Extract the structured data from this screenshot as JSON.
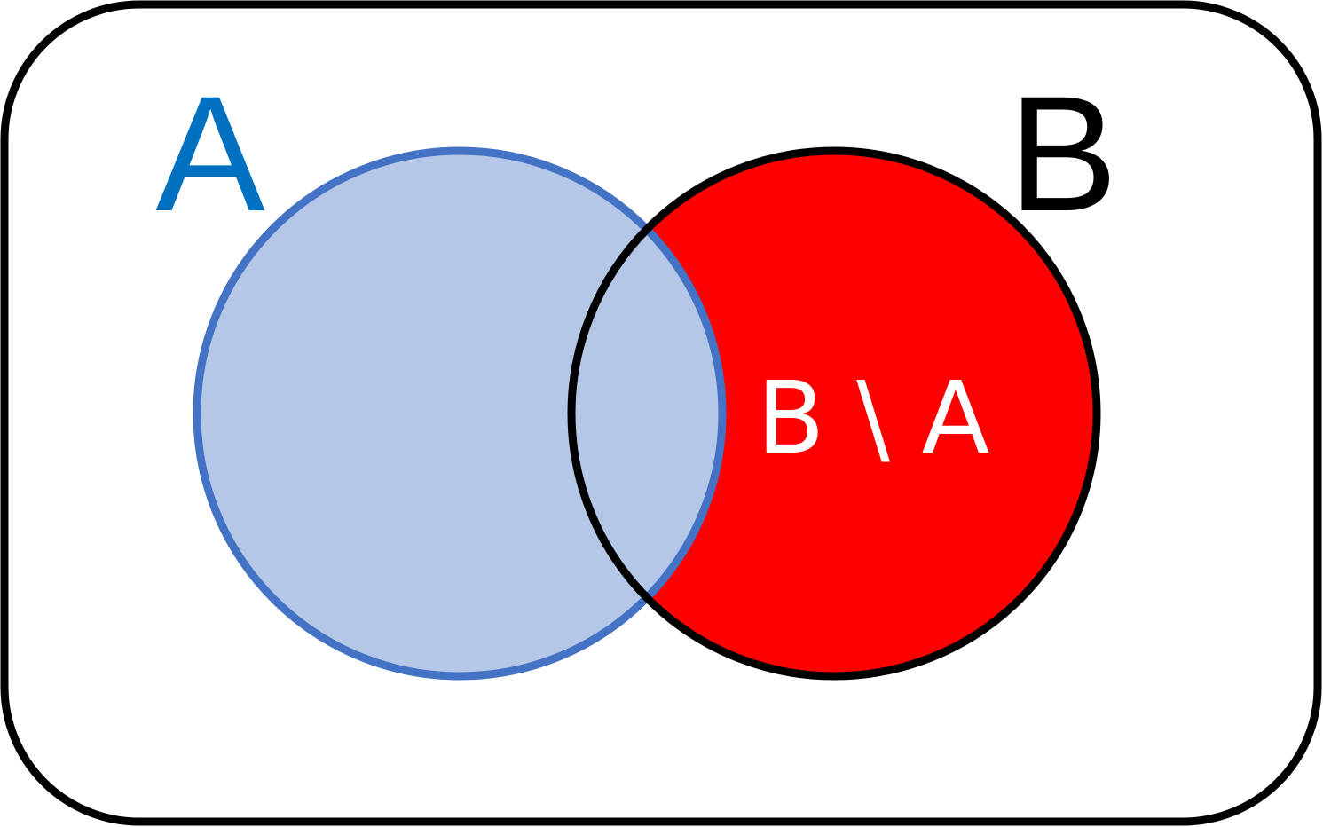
{
  "labels": {
    "set_a": "A",
    "set_b": "B",
    "difference": "B \\ A"
  },
  "colors": {
    "set_a_label": "#0070C0",
    "set_a_fill": "#B4C7E7",
    "set_a_stroke": "#4472C4",
    "set_b_label": "#000000",
    "set_b_fill": "#FF0000",
    "set_b_stroke": "#000000",
    "difference_label": "#FFFFFF",
    "universe_stroke": "#000000",
    "universe_fill": "#FFFFFF"
  }
}
